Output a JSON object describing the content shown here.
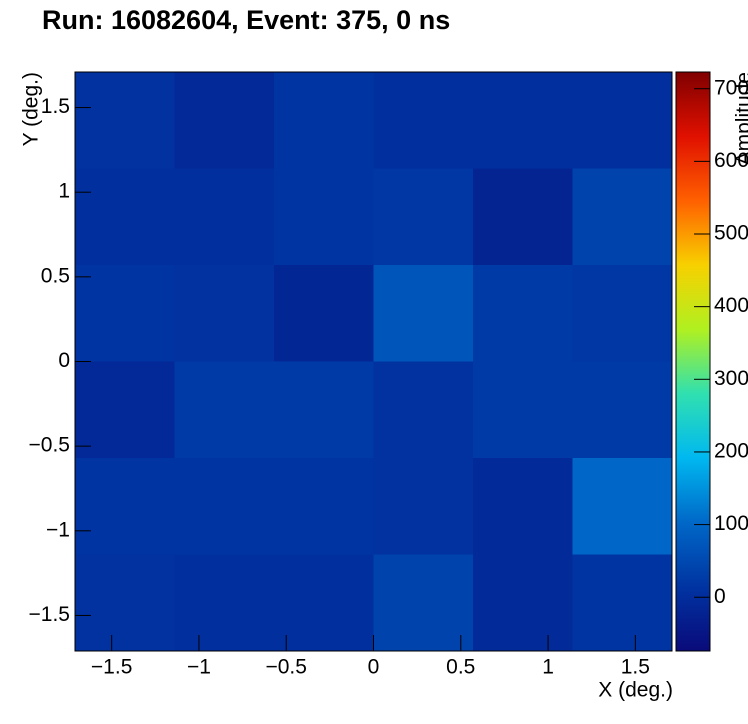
{
  "chart_data": {
    "type": "heatmap",
    "title": "Run: 16082604, Event: 375, 0 ns",
    "x_label": "X (deg.)",
    "y_label": "Y (deg.)",
    "z_label": "Amplitude",
    "xbins": [
      -1.71,
      -1.14,
      -0.57,
      0,
      0.57,
      1.14,
      1.71
    ],
    "ybins": [
      1.71,
      1.14,
      0.57,
      0,
      -0.57,
      -1.14,
      -1.71
    ],
    "z": [
      [
        10,
        -10,
        15,
        5,
        5,
        5
      ],
      [
        5,
        5,
        15,
        20,
        -20,
        40
      ],
      [
        15,
        10,
        -15,
        70,
        25,
        20
      ],
      [
        -10,
        25,
        25,
        10,
        25,
        25
      ],
      [
        15,
        15,
        15,
        10,
        -5,
        100
      ],
      [
        10,
        5,
        5,
        40,
        -5,
        15
      ]
    ],
    "xlim": [
      -1.71,
      1.71
    ],
    "ylim": [
      -1.71,
      1.71
    ],
    "zlim": [
      -74,
      723
    ],
    "xticks": [
      {
        "value": -1.5,
        "label": "−1.5"
      },
      {
        "value": -1,
        "label": "−1"
      },
      {
        "value": -0.5,
        "label": "−0.5"
      },
      0,
      0.5,
      1,
      1.5
    ],
    "yticks": [
      {
        "value": -1.5,
        "label": "−1.5"
      },
      {
        "value": -1,
        "label": "−1"
      },
      {
        "value": -0.5,
        "label": "−0.5"
      },
      0,
      0.5,
      1,
      1.5
    ],
    "zticks": [
      0,
      100,
      200,
      300,
      400,
      500,
      600,
      700
    ],
    "colormap": [
      "#0a0a7a",
      "#0034a2",
      "#0068c8",
      "#00b8f0",
      "#30e0b0",
      "#b0f020",
      "#f8d000",
      "#ff6000",
      "#e01000",
      "#800000"
    ]
  }
}
